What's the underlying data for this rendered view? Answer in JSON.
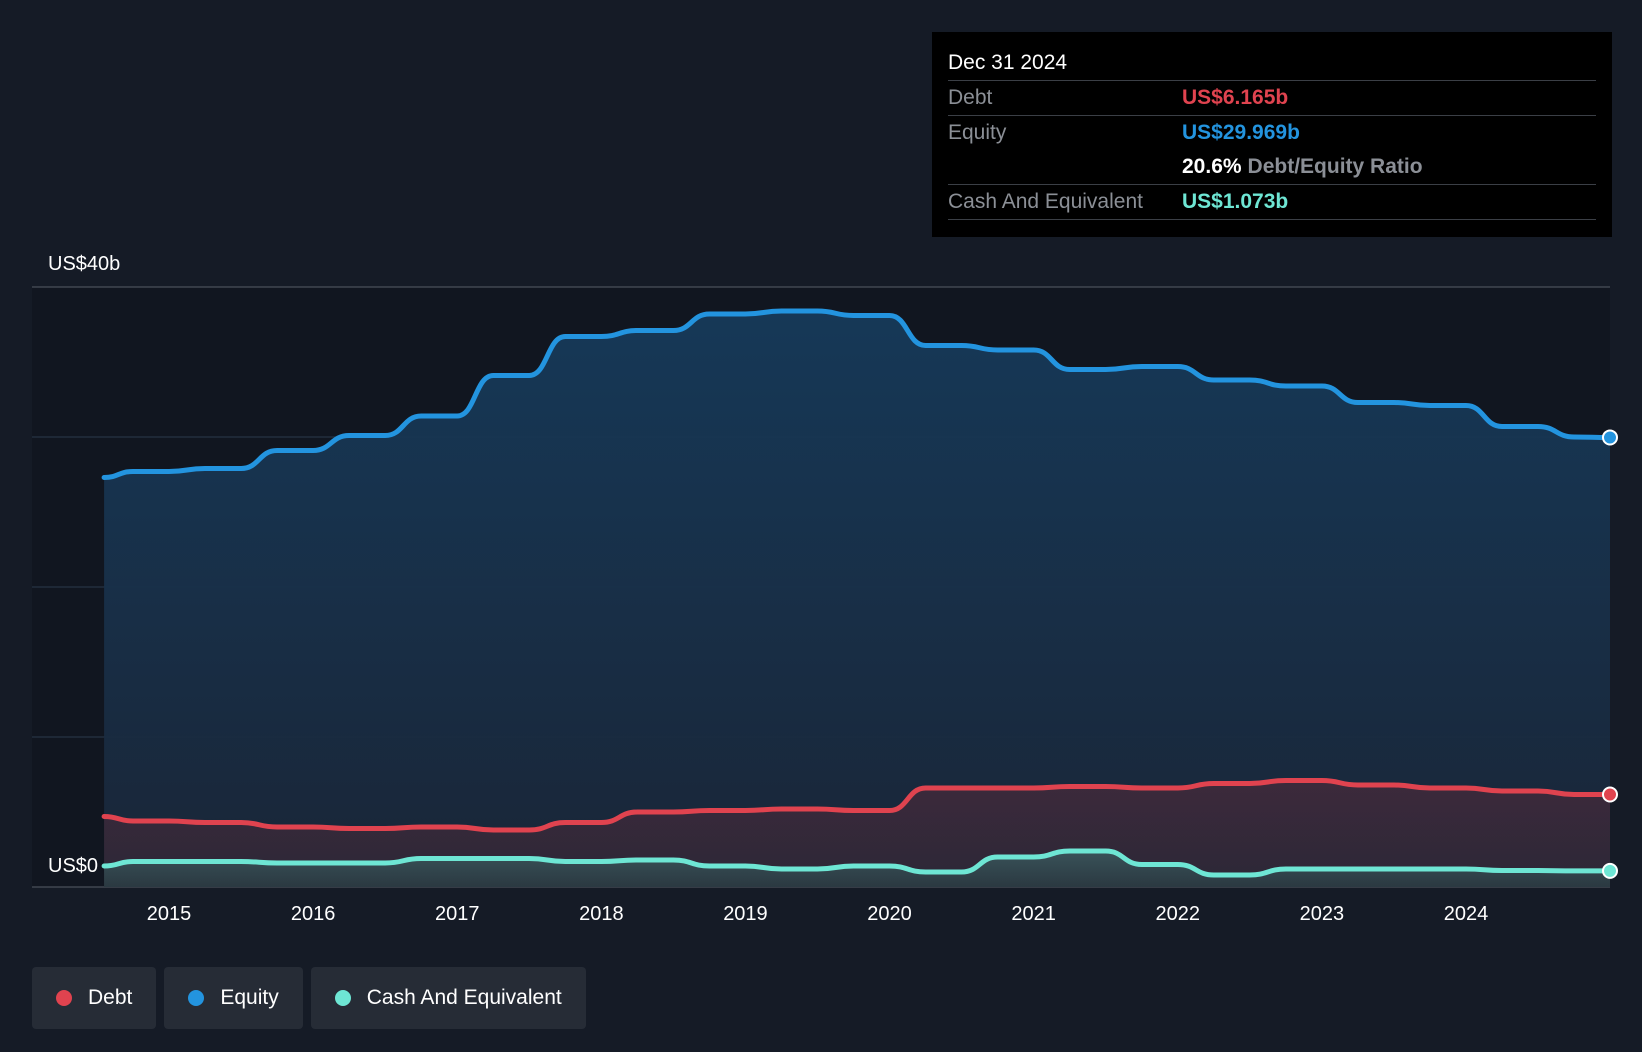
{
  "tooltip": {
    "date": "Dec 31 2024",
    "debt_label": "Debt",
    "debt_value": "US$6.165b",
    "equity_label": "Equity",
    "equity_value": "US$29.969b",
    "ratio_value": "20.6%",
    "ratio_label": "Debt/Equity Ratio",
    "cash_label": "Cash And Equivalent",
    "cash_value": "US$1.073b"
  },
  "legend": {
    "debt": "Debt",
    "equity": "Equity",
    "cash": "Cash And Equivalent"
  },
  "colors": {
    "debt": "#e0434f",
    "equity": "#2394df",
    "cash": "#6ee6d4",
    "background": "#151b26"
  },
  "chart_data": {
    "type": "area",
    "title": "",
    "xlabel": "",
    "ylabel": "",
    "ylim": [
      0,
      40
    ],
    "y_tick_labels": [
      "US$40b",
      "US$0"
    ],
    "y_tick_values": [
      40,
      0
    ],
    "x_ticks": [
      "2015",
      "2016",
      "2017",
      "2018",
      "2019",
      "2020",
      "2021",
      "2022",
      "2023",
      "2024"
    ],
    "x_tick_values": [
      2015,
      2016,
      2017,
      2018,
      2019,
      2020,
      2021,
      2022,
      2023,
      2024
    ],
    "xlim": [
      2014.1,
      2025.0
    ],
    "series": [
      {
        "name": "Equity",
        "color": "#2394df",
        "points": [
          [
            2014.55,
            27.3
          ],
          [
            2014.75,
            27.7
          ],
          [
            2015.0,
            27.7
          ],
          [
            2015.25,
            27.9
          ],
          [
            2015.5,
            27.9
          ],
          [
            2015.75,
            29.1
          ],
          [
            2016.0,
            29.1
          ],
          [
            2016.25,
            30.1
          ],
          [
            2016.5,
            30.1
          ],
          [
            2016.75,
            31.4
          ],
          [
            2017.0,
            31.4
          ],
          [
            2017.25,
            34.1
          ],
          [
            2017.5,
            34.1
          ],
          [
            2017.75,
            36.7
          ],
          [
            2018.0,
            36.7
          ],
          [
            2018.25,
            37.1
          ],
          [
            2018.5,
            37.1
          ],
          [
            2018.75,
            38.2
          ],
          [
            2019.0,
            38.2
          ],
          [
            2019.25,
            38.4
          ],
          [
            2019.5,
            38.4
          ],
          [
            2019.75,
            38.1
          ],
          [
            2020.0,
            38.1
          ],
          [
            2020.25,
            36.1
          ],
          [
            2020.5,
            36.1
          ],
          [
            2020.75,
            35.8
          ],
          [
            2021.0,
            35.8
          ],
          [
            2021.25,
            34.5
          ],
          [
            2021.5,
            34.5
          ],
          [
            2021.75,
            34.7
          ],
          [
            2022.0,
            34.7
          ],
          [
            2022.25,
            33.8
          ],
          [
            2022.5,
            33.8
          ],
          [
            2022.75,
            33.4
          ],
          [
            2023.0,
            33.4
          ],
          [
            2023.25,
            32.3
          ],
          [
            2023.5,
            32.3
          ],
          [
            2023.75,
            32.1
          ],
          [
            2024.0,
            32.1
          ],
          [
            2024.25,
            30.7
          ],
          [
            2024.5,
            30.7
          ],
          [
            2024.75,
            30.0
          ],
          [
            2025.0,
            29.969
          ]
        ]
      },
      {
        "name": "Debt",
        "color": "#e0434f",
        "points": [
          [
            2014.55,
            4.7
          ],
          [
            2014.75,
            4.4
          ],
          [
            2015.0,
            4.4
          ],
          [
            2015.25,
            4.3
          ],
          [
            2015.5,
            4.3
          ],
          [
            2015.75,
            4.0
          ],
          [
            2016.0,
            4.0
          ],
          [
            2016.25,
            3.9
          ],
          [
            2016.5,
            3.9
          ],
          [
            2016.75,
            4.0
          ],
          [
            2017.0,
            4.0
          ],
          [
            2017.25,
            3.8
          ],
          [
            2017.5,
            3.8
          ],
          [
            2017.75,
            4.3
          ],
          [
            2018.0,
            4.3
          ],
          [
            2018.25,
            5.0
          ],
          [
            2018.5,
            5.0
          ],
          [
            2018.75,
            5.1
          ],
          [
            2019.0,
            5.1
          ],
          [
            2019.25,
            5.2
          ],
          [
            2019.5,
            5.2
          ],
          [
            2019.75,
            5.1
          ],
          [
            2020.0,
            5.1
          ],
          [
            2020.25,
            6.6
          ],
          [
            2020.5,
            6.6
          ],
          [
            2020.75,
            6.6
          ],
          [
            2021.0,
            6.6
          ],
          [
            2021.25,
            6.7
          ],
          [
            2021.5,
            6.7
          ],
          [
            2021.75,
            6.6
          ],
          [
            2022.0,
            6.6
          ],
          [
            2022.25,
            6.9
          ],
          [
            2022.5,
            6.9
          ],
          [
            2022.75,
            7.1
          ],
          [
            2023.0,
            7.1
          ],
          [
            2023.25,
            6.8
          ],
          [
            2023.5,
            6.8
          ],
          [
            2023.75,
            6.6
          ],
          [
            2024.0,
            6.6
          ],
          [
            2024.25,
            6.4
          ],
          [
            2024.5,
            6.4
          ],
          [
            2024.75,
            6.165
          ],
          [
            2025.0,
            6.165
          ]
        ]
      },
      {
        "name": "Cash And Equivalent",
        "color": "#6ee6d4",
        "points": [
          [
            2014.55,
            1.4
          ],
          [
            2014.75,
            1.7
          ],
          [
            2015.0,
            1.7
          ],
          [
            2015.25,
            1.7
          ],
          [
            2015.5,
            1.7
          ],
          [
            2015.75,
            1.6
          ],
          [
            2016.0,
            1.6
          ],
          [
            2016.25,
            1.6
          ],
          [
            2016.5,
            1.6
          ],
          [
            2016.75,
            1.9
          ],
          [
            2017.0,
            1.9
          ],
          [
            2017.25,
            1.9
          ],
          [
            2017.5,
            1.9
          ],
          [
            2017.75,
            1.7
          ],
          [
            2018.0,
            1.7
          ],
          [
            2018.25,
            1.8
          ],
          [
            2018.5,
            1.8
          ],
          [
            2018.75,
            1.4
          ],
          [
            2019.0,
            1.4
          ],
          [
            2019.25,
            1.2
          ],
          [
            2019.5,
            1.2
          ],
          [
            2019.75,
            1.4
          ],
          [
            2020.0,
            1.4
          ],
          [
            2020.25,
            1.0
          ],
          [
            2020.5,
            1.0
          ],
          [
            2020.75,
            2.0
          ],
          [
            2021.0,
            2.0
          ],
          [
            2021.25,
            2.4
          ],
          [
            2021.5,
            2.4
          ],
          [
            2021.75,
            1.5
          ],
          [
            2022.0,
            1.5
          ],
          [
            2022.25,
            0.8
          ],
          [
            2022.5,
            0.8
          ],
          [
            2022.75,
            1.2
          ],
          [
            2023.0,
            1.2
          ],
          [
            2023.25,
            1.2
          ],
          [
            2023.5,
            1.2
          ],
          [
            2023.75,
            1.2
          ],
          [
            2024.0,
            1.2
          ],
          [
            2024.25,
            1.1
          ],
          [
            2024.5,
            1.1
          ],
          [
            2024.75,
            1.073
          ],
          [
            2025.0,
            1.073
          ]
        ]
      }
    ],
    "tooltip_date": "Dec 31 2024"
  }
}
